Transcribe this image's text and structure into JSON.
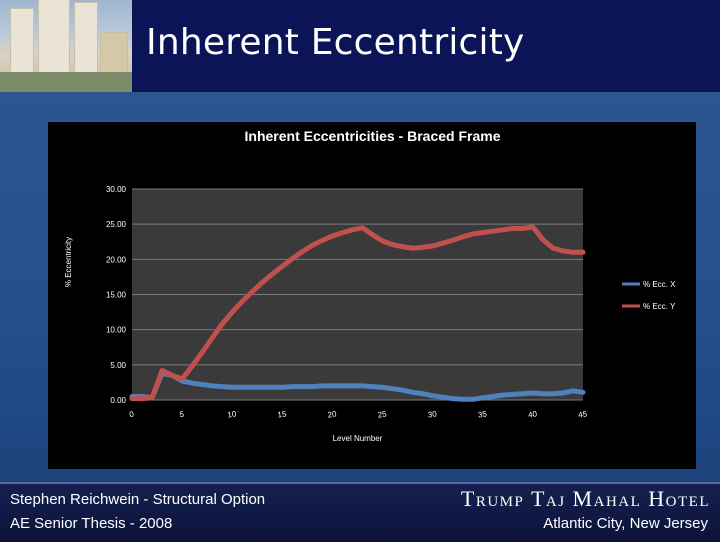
{
  "slide": {
    "title": "Inherent Eccentricity"
  },
  "footer": {
    "left_line1": "Stephen Reichwein - Structural Option",
    "left_line2": "AE Senior Thesis - 2008",
    "right_line1": "Trump Taj Mahal Hotel",
    "right_line2": "Atlantic City, New Jersey"
  },
  "colors": {
    "series_x": "#4f81bd",
    "series_y": "#c0504d",
    "header_bg": "#0a1457",
    "content_bg": "#2a5590"
  },
  "chart_data": {
    "type": "line",
    "title": "Inherent Eccentricities - Braced Frame",
    "xlabel": "Level Number",
    "ylabel": "% Eccentricity",
    "xlim": [
      0,
      45
    ],
    "ylim": [
      0,
      30
    ],
    "x_ticks": [
      "0",
      "5",
      "10",
      "15",
      "20",
      "25",
      "30",
      "35",
      "40",
      "45"
    ],
    "y_ticks": [
      "0.00",
      "5.00",
      "10.00",
      "15.00",
      "20.00",
      "25.00",
      "30.00"
    ],
    "grid": true,
    "legend_position": "right",
    "series": [
      {
        "name": "% Ecc. X",
        "x": [
          0,
          1,
          2,
          3,
          4,
          5,
          6,
          7,
          8,
          9,
          10,
          11,
          12,
          13,
          14,
          15,
          16,
          17,
          18,
          19,
          20,
          21,
          22,
          23,
          24,
          25,
          26,
          27,
          28,
          29,
          30,
          31,
          32,
          33,
          34,
          35,
          36,
          37,
          38,
          39,
          40,
          41,
          42,
          43,
          44,
          45
        ],
        "y": [
          0.5,
          0.5,
          0.3,
          3.8,
          3.5,
          2.7,
          2.4,
          2.2,
          2.0,
          1.9,
          1.8,
          1.8,
          1.8,
          1.8,
          1.8,
          1.8,
          1.9,
          1.9,
          1.9,
          2.0,
          2.0,
          2.0,
          2.0,
          2.0,
          1.9,
          1.8,
          1.6,
          1.4,
          1.1,
          0.9,
          0.6,
          0.4,
          0.2,
          0.1,
          0.1,
          0.3,
          0.5,
          0.7,
          0.8,
          0.9,
          1.0,
          0.9,
          0.9,
          1.0,
          1.3,
          1.1
        ]
      },
      {
        "name": "% Ecc. Y",
        "x": [
          0,
          1,
          2,
          3,
          4,
          5,
          6,
          7,
          8,
          9,
          10,
          11,
          12,
          13,
          14,
          15,
          16,
          17,
          18,
          19,
          20,
          21,
          22,
          23,
          24,
          25,
          26,
          27,
          28,
          29,
          30,
          31,
          32,
          33,
          34,
          35,
          36,
          37,
          38,
          39,
          40,
          41,
          42,
          43,
          44,
          45
        ],
        "y": [
          0.2,
          0.2,
          0.3,
          4.2,
          3.5,
          3.0,
          4.8,
          6.8,
          8.8,
          10.8,
          12.5,
          14.0,
          15.4,
          16.7,
          17.9,
          19.0,
          20.1,
          21.1,
          22.0,
          22.7,
          23.3,
          23.8,
          24.2,
          24.5,
          23.5,
          22.6,
          22.1,
          21.8,
          21.6,
          21.7,
          21.9,
          22.3,
          22.7,
          23.2,
          23.6,
          23.8,
          24.0,
          24.2,
          24.4,
          24.4,
          24.6,
          22.8,
          21.6,
          21.2,
          21.0,
          21.0
        ]
      }
    ]
  }
}
